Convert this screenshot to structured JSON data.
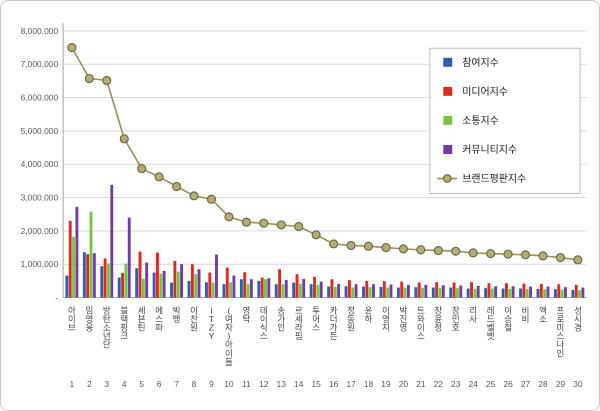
{
  "figure": {
    "background": "#ffffff",
    "border_color": "#c9c9c9",
    "grid_color": "#d9d9d9",
    "axis_color": "#a6a6a6",
    "tick_label_color": "#595959",
    "category_label_color": "#404040"
  },
  "chart_data": {
    "type": "bar+line",
    "title": "",
    "grid": true,
    "legend_position": "upper-right",
    "ylim": [
      0,
      8000000
    ],
    "y_ticks": [
      {
        "value": 8000000,
        "label": "8,000,000"
      },
      {
        "value": 7000000,
        "label": "7,000,000"
      },
      {
        "value": 6000000,
        "label": "6,000,000"
      },
      {
        "value": 5000000,
        "label": "5,000,000"
      },
      {
        "value": 4000000,
        "label": "4,000,000"
      },
      {
        "value": 3000000,
        "label": "3,000,000"
      },
      {
        "value": 2000000,
        "label": "2,000,000"
      },
      {
        "value": 1000000,
        "label": "1,000,000"
      },
      {
        "value": 0,
        "label": "-"
      }
    ],
    "categories": [
      "아이브",
      "임영웅",
      "방탄소년단",
      "블랙핑크",
      "세븐틴",
      "에스파",
      "빅뱅",
      "이찬원",
      "ITZY",
      "(여자)아이들",
      "영탁",
      "데이식스",
      "송가인",
      "르세라핌",
      "투어스",
      "카더가든",
      "정동원",
      "윤하",
      "이영지",
      "박진영",
      "트와이스",
      "장윤정",
      "장민호",
      "리사",
      "레드벨벳",
      "이승철",
      "비비",
      "엑소",
      "프로미스나인",
      "성시경"
    ],
    "rank_labels": [
      "1",
      "2",
      "3",
      "4",
      "5",
      "6",
      "7",
      "8",
      "9",
      "10",
      "11",
      "12",
      "13",
      "14",
      "15",
      "16",
      "17",
      "18",
      "19",
      "20",
      "21",
      "22",
      "23",
      "24",
      "25",
      "26",
      "27",
      "28",
      "29",
      "30"
    ],
    "bar_series": [
      {
        "name": "참여지수",
        "color": "#2f5cb0",
        "values": [
          660000,
          1360000,
          940000,
          600000,
          880000,
          750000,
          450000,
          500000,
          460000,
          400000,
          550000,
          500000,
          400000,
          450000,
          400000,
          330000,
          340000,
          330000,
          320000,
          300000,
          310000,
          300000,
          300000,
          270000,
          280000,
          270000,
          270000,
          260000,
          250000,
          230000
        ]
      },
      {
        "name": "미디어지수",
        "color": "#dd2a20",
        "values": [
          2300000,
          1300000,
          1170000,
          740000,
          1380000,
          1350000,
          1100000,
          1000000,
          750000,
          900000,
          760000,
          600000,
          850000,
          700000,
          620000,
          550000,
          520000,
          500000,
          490000,
          480000,
          450000,
          460000,
          450000,
          460000,
          430000,
          430000,
          420000,
          410000,
          400000,
          380000
        ]
      },
      {
        "name": "소통지수",
        "color": "#7cc342",
        "values": [
          1820000,
          2580000,
          1020000,
          1020000,
          560000,
          720000,
          780000,
          700000,
          450000,
          460000,
          400000,
          550000,
          400000,
          420000,
          380000,
          320000,
          300000,
          310000,
          300000,
          300000,
          290000,
          280000,
          280000,
          260000,
          270000,
          260000,
          260000,
          250000,
          240000,
          220000
        ]
      },
      {
        "name": "커뮤니티지수",
        "color": "#6f3da6",
        "values": [
          2720000,
          1330000,
          3380000,
          2400000,
          1050000,
          800000,
          1000000,
          850000,
          1290000,
          660000,
          550000,
          580000,
          530000,
          560000,
          480000,
          410000,
          400000,
          400000,
          390000,
          380000,
          380000,
          370000,
          360000,
          350000,
          340000,
          340000,
          330000,
          330000,
          310000,
          300000
        ]
      }
    ],
    "line_series": {
      "name": "브랜드평판지수",
      "color": "#9a9158",
      "marker_fill": "#b6ad72",
      "marker_stroke": "#6d6847",
      "values": [
        7500000,
        6570000,
        6510000,
        4760000,
        3870000,
        3620000,
        3330000,
        3050000,
        2950000,
        2420000,
        2260000,
        2230000,
        2180000,
        2130000,
        1880000,
        1610000,
        1560000,
        1540000,
        1500000,
        1460000,
        1430000,
        1410000,
        1390000,
        1340000,
        1320000,
        1300000,
        1280000,
        1250000,
        1200000,
        1130000
      ]
    }
  }
}
